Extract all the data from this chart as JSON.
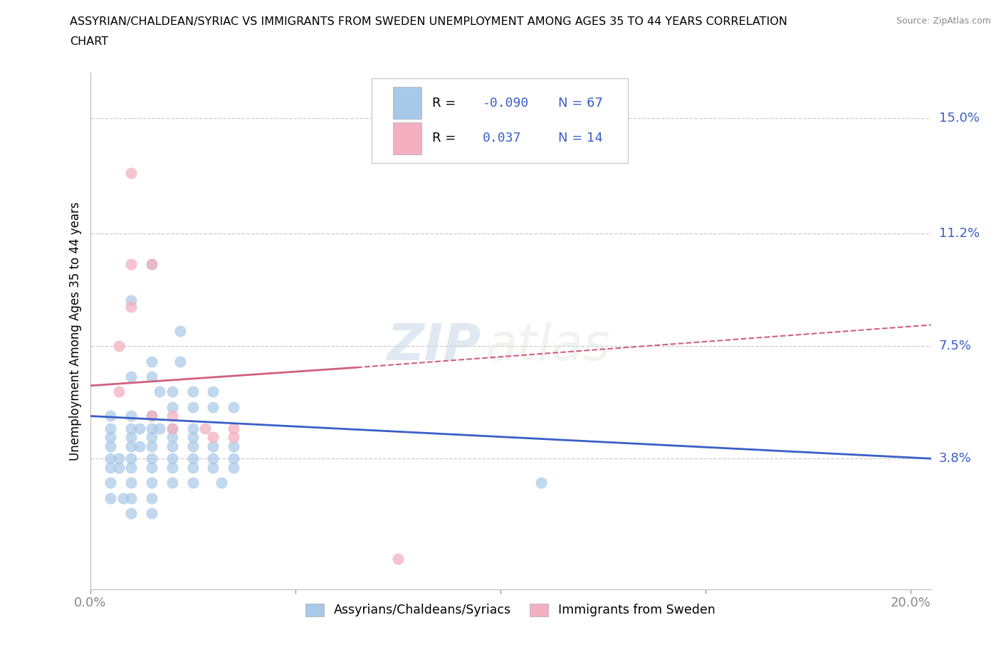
{
  "title_line1": "ASSYRIAN/CHALDEAN/SYRIAC VS IMMIGRANTS FROM SWEDEN UNEMPLOYMENT AMONG AGES 35 TO 44 YEARS CORRELATION",
  "title_line2": "CHART",
  "source_text": "Source: ZipAtlas.com",
  "ylabel": "Unemployment Among Ages 35 to 44 years",
  "xlim": [
    0.0,
    0.205
  ],
  "ylim": [
    -0.005,
    0.165
  ],
  "xtick_positions": [
    0.0,
    0.05,
    0.1,
    0.15,
    0.2
  ],
  "xticklabels": [
    "0.0%",
    "",
    "",
    "",
    "20.0%"
  ],
  "ytick_positions": [
    0.038,
    0.075,
    0.112,
    0.15
  ],
  "ytick_labels": [
    "3.8%",
    "7.5%",
    "11.2%",
    "15.0%"
  ],
  "blue_dot_color": "#a8c8e8",
  "pink_dot_color": "#f4b0c0",
  "blue_line_color": "#3a5fc8",
  "pink_line_color": "#d06080",
  "pink_dash_color": "#d06080",
  "trendline_blue": [
    [
      0.0,
      0.052
    ],
    [
      0.205,
      0.038
    ]
  ],
  "trendline_pink_solid": [
    [
      0.0,
      0.062
    ],
    [
      0.065,
      0.068
    ]
  ],
  "trendline_pink_dash": [
    [
      0.065,
      0.068
    ],
    [
      0.205,
      0.082
    ]
  ],
  "R_blue": "-0.090",
  "N_blue": "67",
  "R_pink": "0.037",
  "N_pink": "14",
  "legend_label_blue": "Assyrians/Chaldeans/Syriacs",
  "legend_label_pink": "Immigrants from Sweden",
  "blue_scatter": [
    [
      0.01,
      0.09
    ],
    [
      0.015,
      0.102
    ],
    [
      0.015,
      0.07
    ],
    [
      0.022,
      0.08
    ],
    [
      0.022,
      0.07
    ],
    [
      0.01,
      0.065
    ],
    [
      0.015,
      0.065
    ],
    [
      0.017,
      0.06
    ],
    [
      0.02,
      0.06
    ],
    [
      0.02,
      0.055
    ],
    [
      0.025,
      0.06
    ],
    [
      0.025,
      0.055
    ],
    [
      0.03,
      0.06
    ],
    [
      0.03,
      0.055
    ],
    [
      0.035,
      0.055
    ],
    [
      0.005,
      0.052
    ],
    [
      0.01,
      0.052
    ],
    [
      0.015,
      0.052
    ],
    [
      0.005,
      0.048
    ],
    [
      0.01,
      0.048
    ],
    [
      0.012,
      0.048
    ],
    [
      0.015,
      0.048
    ],
    [
      0.017,
      0.048
    ],
    [
      0.02,
      0.048
    ],
    [
      0.025,
      0.048
    ],
    [
      0.005,
      0.045
    ],
    [
      0.01,
      0.045
    ],
    [
      0.015,
      0.045
    ],
    [
      0.02,
      0.045
    ],
    [
      0.025,
      0.045
    ],
    [
      0.005,
      0.042
    ],
    [
      0.01,
      0.042
    ],
    [
      0.012,
      0.042
    ],
    [
      0.015,
      0.042
    ],
    [
      0.02,
      0.042
    ],
    [
      0.025,
      0.042
    ],
    [
      0.03,
      0.042
    ],
    [
      0.005,
      0.038
    ],
    [
      0.007,
      0.038
    ],
    [
      0.01,
      0.038
    ],
    [
      0.015,
      0.038
    ],
    [
      0.02,
      0.038
    ],
    [
      0.025,
      0.038
    ],
    [
      0.03,
      0.038
    ],
    [
      0.035,
      0.038
    ],
    [
      0.035,
      0.042
    ],
    [
      0.005,
      0.035
    ],
    [
      0.007,
      0.035
    ],
    [
      0.01,
      0.035
    ],
    [
      0.015,
      0.035
    ],
    [
      0.02,
      0.035
    ],
    [
      0.025,
      0.035
    ],
    [
      0.03,
      0.035
    ],
    [
      0.035,
      0.035
    ],
    [
      0.005,
      0.03
    ],
    [
      0.01,
      0.03
    ],
    [
      0.015,
      0.03
    ],
    [
      0.02,
      0.03
    ],
    [
      0.025,
      0.03
    ],
    [
      0.032,
      0.03
    ],
    [
      0.005,
      0.025
    ],
    [
      0.008,
      0.025
    ],
    [
      0.01,
      0.025
    ],
    [
      0.015,
      0.025
    ],
    [
      0.01,
      0.02
    ],
    [
      0.015,
      0.02
    ],
    [
      0.11,
      0.03
    ]
  ],
  "pink_scatter": [
    [
      0.01,
      0.132
    ],
    [
      0.01,
      0.102
    ],
    [
      0.015,
      0.102
    ],
    [
      0.01,
      0.088
    ],
    [
      0.007,
      0.075
    ],
    [
      0.007,
      0.06
    ],
    [
      0.015,
      0.052
    ],
    [
      0.02,
      0.048
    ],
    [
      0.02,
      0.052
    ],
    [
      0.028,
      0.048
    ],
    [
      0.03,
      0.045
    ],
    [
      0.035,
      0.045
    ],
    [
      0.035,
      0.048
    ],
    [
      0.075,
      0.005
    ]
  ],
  "watermark_zip": "ZIP",
  "watermark_atlas": "atlas"
}
